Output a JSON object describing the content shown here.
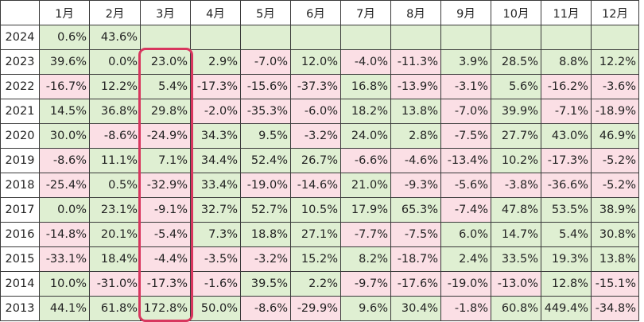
{
  "chart_data": {
    "type": "table",
    "columns": [
      "",
      "1月",
      "2月",
      "3月",
      "4月",
      "5月",
      "6月",
      "7月",
      "8月",
      "9月",
      "10月",
      "11月",
      "12月"
    ],
    "rows": [
      {
        "year": "2024",
        "values": [
          "0.6%",
          "43.6%",
          "",
          "",
          "",
          "",
          "",
          "",
          "",
          "",
          "",
          ""
        ]
      },
      {
        "year": "2023",
        "values": [
          "39.6%",
          "0.0%",
          "23.0%",
          "2.9%",
          "-7.0%",
          "12.0%",
          "-4.0%",
          "-11.3%",
          "3.9%",
          "28.5%",
          "8.8%",
          "12.2%"
        ]
      },
      {
        "year": "2022",
        "values": [
          "-16.7%",
          "12.2%",
          "5.4%",
          "-17.3%",
          "-15.6%",
          "-37.3%",
          "16.8%",
          "-13.9%",
          "-3.1%",
          "5.6%",
          "-16.2%",
          "-3.6%"
        ]
      },
      {
        "year": "2021",
        "values": [
          "14.5%",
          "36.8%",
          "29.8%",
          "-2.0%",
          "-35.3%",
          "-6.0%",
          "18.2%",
          "13.8%",
          "-7.0%",
          "39.9%",
          "-7.1%",
          "-18.9%"
        ]
      },
      {
        "year": "2020",
        "values": [
          "30.0%",
          "-8.6%",
          "-24.9%",
          "34.3%",
          "9.5%",
          "-3.2%",
          "24.0%",
          "2.8%",
          "-7.5%",
          "27.7%",
          "43.0%",
          "46.9%"
        ]
      },
      {
        "year": "2019",
        "values": [
          "-8.6%",
          "11.1%",
          "7.1%",
          "34.4%",
          "52.4%",
          "26.7%",
          "-6.6%",
          "-4.6%",
          "-13.4%",
          "10.2%",
          "-17.3%",
          "-5.2%"
        ]
      },
      {
        "year": "2018",
        "values": [
          "-25.4%",
          "0.5%",
          "-32.9%",
          "33.4%",
          "-19.0%",
          "-14.6%",
          "21.0%",
          "-9.3%",
          "-5.6%",
          "-3.8%",
          "-36.6%",
          "-5.2%"
        ]
      },
      {
        "year": "2017",
        "values": [
          "0.0%",
          "23.1%",
          "-9.1%",
          "32.7%",
          "52.7%",
          "10.5%",
          "17.9%",
          "65.3%",
          "-7.4%",
          "47.8%",
          "53.5%",
          "38.9%"
        ]
      },
      {
        "year": "2016",
        "values": [
          "-14.8%",
          "20.1%",
          "-5.4%",
          "7.3%",
          "18.8%",
          "27.1%",
          "-7.7%",
          "-7.5%",
          "6.0%",
          "14.7%",
          "5.4%",
          "30.8%"
        ]
      },
      {
        "year": "2015",
        "values": [
          "-33.1%",
          "18.4%",
          "-4.4%",
          "-3.5%",
          "-3.2%",
          "15.2%",
          "8.2%",
          "-18.7%",
          "2.4%",
          "33.5%",
          "19.3%",
          "13.8%"
        ]
      },
      {
        "year": "2014",
        "values": [
          "10.0%",
          "-31.0%",
          "-17.3%",
          "-1.6%",
          "39.5%",
          "2.2%",
          "-9.7%",
          "-17.6%",
          "-19.0%",
          "-13.0%",
          "12.8%",
          "-15.1%"
        ]
      },
      {
        "year": "2013",
        "values": [
          "44.1%",
          "61.8%",
          "172.8%",
          "50.0%",
          "-8.6%",
          "-29.9%",
          "9.6%",
          "30.4%",
          "-1.8%",
          "60.8%",
          "449.4%",
          "-34.8%"
        ]
      }
    ],
    "highlighted_column": "3月",
    "colors": {
      "positive_fill": "#dfefd2",
      "negative_fill": "#fbdfe5",
      "highlight_border": "#d8365e",
      "grid": "#3a3a3a"
    }
  }
}
